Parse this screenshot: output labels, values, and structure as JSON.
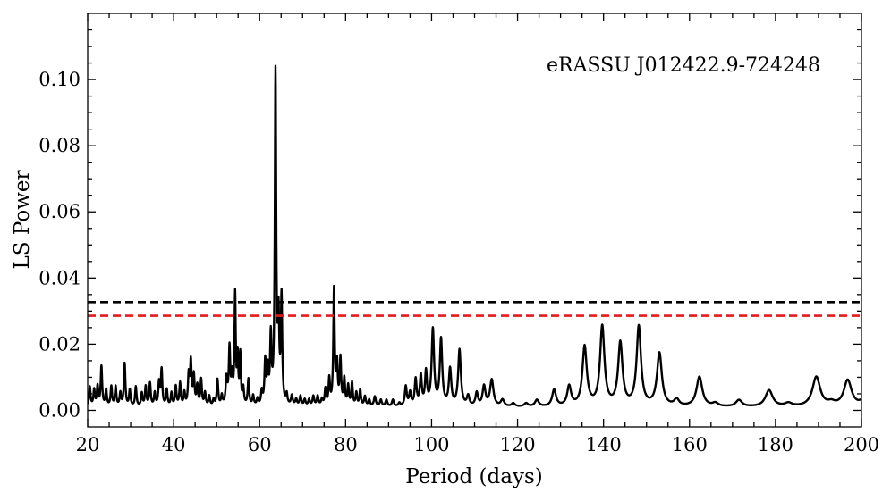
{
  "chart_data": {
    "type": "line",
    "annotation": "eRASSU J012422.9-724248",
    "xlabel": "Period (days)",
    "ylabel": "LS Power",
    "xlim": [
      20,
      200
    ],
    "ylim": [
      -0.005,
      0.12
    ],
    "x_ticks": [
      20,
      40,
      60,
      80,
      100,
      120,
      140,
      160,
      180,
      200
    ],
    "y_ticks": [
      0.0,
      0.02,
      0.04,
      0.06,
      0.08,
      0.1
    ],
    "y_tick_labels": [
      "0.00",
      "0.02",
      "0.04",
      "0.06",
      "0.08",
      "0.10"
    ],
    "grid": false,
    "series": [
      {
        "color": "#000000",
        "style": "solid",
        "peaks": [
          [
            20.5,
            0.006,
            0.3
          ],
          [
            21.5,
            0.005,
            0.3
          ],
          [
            22.3,
            0.006,
            0.3
          ],
          [
            23.2,
            0.012,
            0.3
          ],
          [
            24.3,
            0.005,
            0.3
          ],
          [
            25.5,
            0.006,
            0.3
          ],
          [
            26.5,
            0.006,
            0.3
          ],
          [
            27.6,
            0.004,
            0.3
          ],
          [
            28.6,
            0.013,
            0.3
          ],
          [
            29.8,
            0.005,
            0.3
          ],
          [
            31.2,
            0.006,
            0.3
          ],
          [
            32.6,
            0.004,
            0.3
          ],
          [
            33.5,
            0.006,
            0.3
          ],
          [
            34.5,
            0.007,
            0.3
          ],
          [
            35.6,
            0.004,
            0.3
          ],
          [
            36.6,
            0.007,
            0.3
          ],
          [
            37.2,
            0.011,
            0.3
          ],
          [
            38.4,
            0.005,
            0.3
          ],
          [
            39.5,
            0.004,
            0.3
          ],
          [
            40.5,
            0.006,
            0.3
          ],
          [
            41.5,
            0.007,
            0.3
          ],
          [
            42.5,
            0.004,
            0.3
          ],
          [
            43.5,
            0.009,
            0.3
          ],
          [
            44.0,
            0.013,
            0.3
          ],
          [
            44.7,
            0.009,
            0.3
          ],
          [
            45.5,
            0.006,
            0.3
          ],
          [
            46.4,
            0.008,
            0.3
          ],
          [
            47.3,
            0.004,
            0.3
          ],
          [
            48.3,
            0.003,
            0.3
          ],
          [
            49.3,
            0.002,
            0.3
          ],
          [
            50.2,
            0.008,
            0.3
          ],
          [
            51.2,
            0.003,
            0.3
          ],
          [
            52.3,
            0.008,
            0.35
          ],
          [
            53.0,
            0.017,
            0.3
          ],
          [
            53.6,
            0.008,
            0.3
          ],
          [
            54.3,
            0.033,
            0.25
          ],
          [
            54.9,
            0.014,
            0.25
          ],
          [
            55.5,
            0.015,
            0.25
          ],
          [
            56.2,
            0.005,
            0.3
          ],
          [
            57.4,
            0.008,
            0.3
          ],
          [
            58.5,
            0.003,
            0.3
          ],
          [
            59.5,
            0.002,
            0.3
          ],
          [
            60.5,
            0.004,
            0.3
          ],
          [
            61.3,
            0.013,
            0.3
          ],
          [
            61.9,
            0.01,
            0.3
          ],
          [
            62.6,
            0.02,
            0.3
          ],
          [
            63.7,
            0.1,
            0.28
          ],
          [
            64.4,
            0.024,
            0.28
          ],
          [
            65.1,
            0.032,
            0.28
          ],
          [
            66.3,
            0.003,
            0.3
          ],
          [
            67.5,
            0.003,
            0.35
          ],
          [
            68.5,
            0.002,
            0.35
          ],
          [
            69.5,
            0.003,
            0.35
          ],
          [
            70.5,
            0.002,
            0.35
          ],
          [
            71.5,
            0.002,
            0.35
          ],
          [
            72.5,
            0.003,
            0.35
          ],
          [
            73.5,
            0.003,
            0.35
          ],
          [
            74.5,
            0.002,
            0.35
          ],
          [
            75.3,
            0.005,
            0.3
          ],
          [
            76.2,
            0.008,
            0.3
          ],
          [
            77.3,
            0.035,
            0.28
          ],
          [
            78.0,
            0.012,
            0.3
          ],
          [
            78.8,
            0.014,
            0.3
          ],
          [
            79.7,
            0.008,
            0.3
          ],
          [
            80.6,
            0.006,
            0.3
          ],
          [
            81.5,
            0.007,
            0.3
          ],
          [
            82.5,
            0.004,
            0.3
          ],
          [
            83.4,
            0.005,
            0.3
          ],
          [
            84.5,
            0.003,
            0.35
          ],
          [
            85.5,
            0.002,
            0.35
          ],
          [
            86.8,
            0.003,
            0.4
          ],
          [
            88.2,
            0.002,
            0.4
          ],
          [
            89.5,
            0.002,
            0.4
          ],
          [
            91.0,
            0.002,
            0.4
          ],
          [
            92.5,
            0.001,
            0.4
          ],
          [
            94.0,
            0.006,
            0.4
          ],
          [
            95.0,
            0.004,
            0.4
          ],
          [
            96.3,
            0.008,
            0.4
          ],
          [
            97.5,
            0.009,
            0.4
          ],
          [
            98.7,
            0.01,
            0.4
          ],
          [
            100.3,
            0.023,
            0.5
          ],
          [
            102.2,
            0.02,
            0.5
          ],
          [
            104.3,
            0.011,
            0.5
          ],
          [
            106.5,
            0.017,
            0.55
          ],
          [
            108.5,
            0.003,
            0.5
          ],
          [
            110.5,
            0.004,
            0.5
          ],
          [
            112.2,
            0.006,
            0.6
          ],
          [
            114.0,
            0.008,
            0.7
          ],
          [
            116.5,
            0.002,
            0.7
          ],
          [
            119.0,
            0.001,
            0.7
          ],
          [
            122.0,
            0.001,
            0.8
          ],
          [
            124.5,
            0.002,
            0.8
          ],
          [
            128.5,
            0.005,
            0.8
          ],
          [
            132.0,
            0.006,
            0.8
          ],
          [
            135.6,
            0.018,
            0.9
          ],
          [
            139.7,
            0.024,
            0.9
          ],
          [
            143.9,
            0.019,
            0.9
          ],
          [
            148.2,
            0.024,
            0.9
          ],
          [
            153.0,
            0.016,
            1.0
          ],
          [
            157.0,
            0.002,
            1.0
          ],
          [
            162.3,
            0.009,
            1.2
          ],
          [
            166.0,
            0.001,
            1.2
          ],
          [
            171.5,
            0.002,
            1.3
          ],
          [
            178.5,
            0.005,
            1.5
          ],
          [
            183.0,
            0.001,
            1.5
          ],
          [
            189.5,
            0.009,
            1.6
          ],
          [
            193.0,
            0.001,
            1.5
          ],
          [
            196.8,
            0.008,
            1.6
          ],
          [
            200.5,
            0.002,
            1.5
          ]
        ]
      },
      {
        "color": "#000000",
        "style": "dashed",
        "y": 0.0327
      },
      {
        "color": "#e41a1c",
        "style": "dashed",
        "y": 0.0286
      }
    ]
  }
}
